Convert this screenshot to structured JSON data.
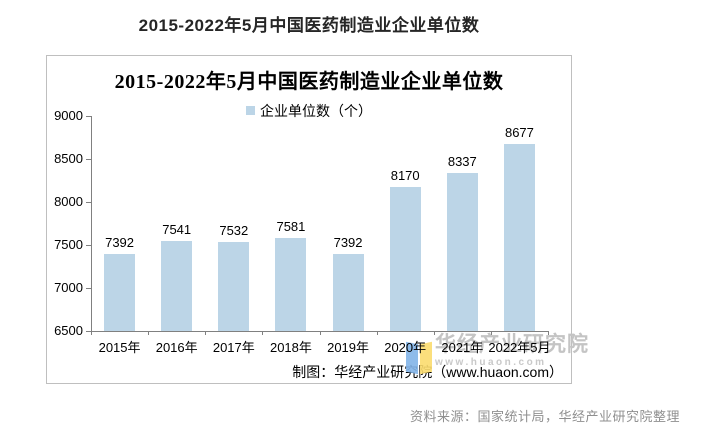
{
  "page": {
    "title": "2015-2022年5月中国医药制造业企业单位数",
    "source_note": "资料来源：国家统计局，华经产业研究院整理"
  },
  "chart": {
    "title": "2015-2022年5月中国医药制造业企业单位数",
    "legend_label": "企业单位数（个）",
    "caption": "制图：华经产业研究院（www.huaon.com）",
    "colors": {
      "bar": "#bcd5e7",
      "frame": "#bfbfbf",
      "axis": "#808080",
      "title_text": "#262626",
      "source_text": "#8f8f8f",
      "watermark_text": "#c4c4c4",
      "watermark_url_text": "#c9c9c9",
      "logo_blue": "#82b4e8",
      "logo_yellow": "#fbdc6e"
    }
  },
  "watermark": {
    "name": "华经产业研究院",
    "url": "www.huaon.com",
    "logo": "open-book-icon"
  },
  "chart_data": {
    "type": "bar",
    "title": "2015-2022年5月中国医药制造业企业单位数",
    "legend": [
      "企业单位数（个）"
    ],
    "legend_position": "top",
    "categories": [
      "2015年",
      "2016年",
      "2017年",
      "2018年",
      "2019年",
      "2020年",
      "2021年",
      "2022年5月"
    ],
    "values": [
      7392,
      7541,
      7532,
      7581,
      7392,
      8170,
      8337,
      8677
    ],
    "xlabel": "",
    "ylabel": "",
    "ylim": [
      6500,
      9000
    ],
    "yticks": [
      6500,
      7000,
      7500,
      8000,
      8500,
      9000
    ],
    "grid": false,
    "data_labels": true
  }
}
